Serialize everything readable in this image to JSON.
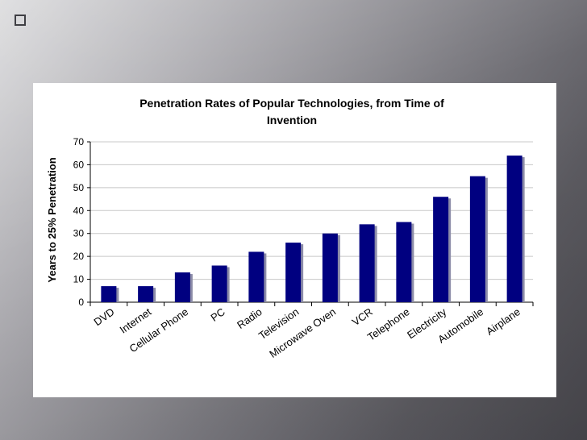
{
  "slide": {
    "background_dark": "#4b4a50",
    "background_light": "#d9d9db"
  },
  "chart_data": {
    "type": "bar",
    "title_lines": [
      "Penetration Rates of Popular Technologies, from Time of",
      "Invention"
    ],
    "ylabel": "Years to 25% Penetration",
    "xlabel": "",
    "ylim": [
      0,
      70
    ],
    "yticks": [
      0,
      10,
      20,
      30,
      40,
      50,
      60,
      70
    ],
    "categories": [
      "DVD",
      "Internet",
      "Cellular Phone",
      "PC",
      "Radio",
      "Television",
      "Microwave Oven",
      "VCR",
      "Telephone",
      "Electricity",
      "Automobile",
      "Airplane"
    ],
    "values": [
      7,
      7,
      13,
      16,
      22,
      26,
      30,
      34,
      35,
      46,
      55,
      64
    ],
    "bar_color": "#000080",
    "shadow_color": "#8c8ca8",
    "grid": true,
    "grid_axis": "y",
    "legend": false
  }
}
